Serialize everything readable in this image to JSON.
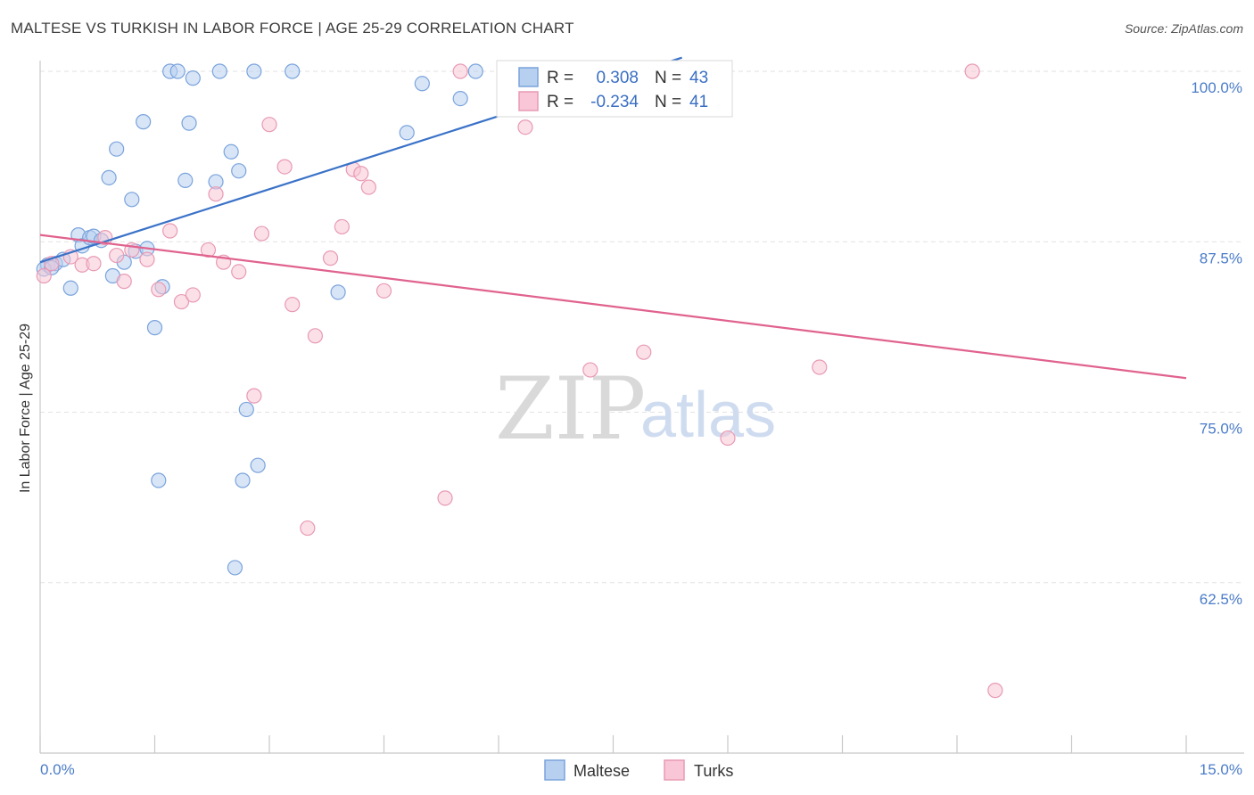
{
  "header": {
    "title": "MALTESE VS TURKISH IN LABOR FORCE | AGE 25-29 CORRELATION CHART",
    "source": "Source: ZipAtlas.com"
  },
  "watermark": {
    "zip": "ZIP",
    "atlas": "atlas"
  },
  "legend": {
    "r_label": "R =",
    "n_label": "N =",
    "rows": [
      {
        "series": "Maltese",
        "r": "0.308",
        "n": "43",
        "fill": "#b8d0f0",
        "stroke": "#7aa3dc"
      },
      {
        "series": "Turks",
        "r": "-0.234",
        "n": "41",
        "fill": "#f8c6d6",
        "stroke": "#e89ab4"
      }
    ]
  },
  "bottom_legend": [
    {
      "label": "Maltese",
      "fill": "#b8d0f0",
      "stroke": "#7aa3dc"
    },
    {
      "label": "Turks",
      "fill": "#f8c6d6",
      "stroke": "#e89ab4"
    }
  ],
  "chart_data": {
    "type": "scatter",
    "title": "MALTESE VS TURKISH IN LABOR FORCE | AGE 25-29 CORRELATION CHART",
    "xlabel": "",
    "ylabel": "In Labor Force | Age 25-29",
    "xlim": [
      0,
      15
    ],
    "ylim": [
      50,
      100
    ],
    "x_tick_labels": [
      "0.0%",
      "15.0%"
    ],
    "y_ticks": [
      62.5,
      75.0,
      87.5,
      100.0
    ],
    "y_tick_labels": [
      "62.5%",
      "75.0%",
      "87.5%",
      "100.0%"
    ],
    "grid": true,
    "legend_position": "top-center",
    "colors": {
      "Maltese": "#3a72c8",
      "Turks": "#e0628e"
    },
    "series": [
      {
        "name": "Maltese",
        "trend": {
          "x": [
            0.0,
            8.4
          ],
          "y": [
            86.0,
            101.0
          ]
        },
        "points": [
          [
            0.1,
            85.8
          ],
          [
            0.2,
            85.9
          ],
          [
            0.3,
            86.2
          ],
          [
            0.4,
            84.1
          ],
          [
            0.5,
            88.0
          ],
          [
            0.55,
            87.2
          ],
          [
            0.65,
            87.8
          ],
          [
            0.7,
            87.9
          ],
          [
            0.8,
            87.6
          ],
          [
            0.9,
            92.2
          ],
          [
            0.95,
            85.0
          ],
          [
            1.0,
            94.3
          ],
          [
            1.1,
            86.0
          ],
          [
            1.2,
            90.6
          ],
          [
            1.25,
            86.8
          ],
          [
            1.35,
            96.3
          ],
          [
            1.5,
            81.2
          ],
          [
            1.6,
            84.2
          ],
          [
            1.55,
            70.0
          ],
          [
            1.7,
            100.0
          ],
          [
            1.8,
            100.0
          ],
          [
            1.9,
            92.0
          ],
          [
            1.95,
            96.2
          ],
          [
            2.0,
            99.5
          ],
          [
            2.3,
            91.9
          ],
          [
            2.35,
            100.0
          ],
          [
            2.5,
            94.1
          ],
          [
            2.55,
            63.6
          ],
          [
            2.6,
            92.7
          ],
          [
            2.65,
            70.0
          ],
          [
            2.8,
            100.0
          ],
          [
            2.7,
            75.2
          ],
          [
            2.85,
            71.1
          ],
          [
            3.3,
            100.0
          ],
          [
            3.9,
            83.8
          ],
          [
            4.8,
            95.5
          ],
          [
            5.0,
            99.1
          ],
          [
            5.5,
            98.0
          ],
          [
            5.7,
            100.0
          ],
          [
            6.1,
            98.1
          ],
          [
            0.05,
            85.5
          ],
          [
            0.15,
            85.6
          ],
          [
            1.4,
            87.0
          ]
        ]
      },
      {
        "name": "Turks",
        "trend": {
          "x": [
            0.0,
            15.0
          ],
          "y": [
            88.0,
            77.5
          ]
        },
        "points": [
          [
            0.05,
            85.0
          ],
          [
            0.15,
            85.9
          ],
          [
            0.4,
            86.4
          ],
          [
            0.55,
            85.8
          ],
          [
            0.7,
            85.9
          ],
          [
            0.85,
            87.8
          ],
          [
            1.0,
            86.5
          ],
          [
            1.1,
            84.6
          ],
          [
            1.2,
            86.9
          ],
          [
            1.4,
            86.2
          ],
          [
            1.55,
            84.0
          ],
          [
            1.7,
            88.3
          ],
          [
            1.85,
            83.1
          ],
          [
            2.0,
            83.6
          ],
          [
            2.2,
            86.9
          ],
          [
            2.3,
            91.0
          ],
          [
            2.4,
            86.0
          ],
          [
            2.6,
            85.3
          ],
          [
            2.8,
            76.2
          ],
          [
            2.9,
            88.1
          ],
          [
            3.0,
            96.1
          ],
          [
            3.2,
            93.0
          ],
          [
            3.3,
            82.9
          ],
          [
            3.5,
            66.5
          ],
          [
            3.6,
            80.6
          ],
          [
            3.8,
            86.3
          ],
          [
            3.95,
            88.6
          ],
          [
            4.1,
            92.8
          ],
          [
            4.2,
            92.5
          ],
          [
            4.3,
            91.5
          ],
          [
            4.5,
            83.9
          ],
          [
            5.3,
            68.7
          ],
          [
            5.5,
            100.0
          ],
          [
            6.1,
            100.0
          ],
          [
            6.35,
            95.9
          ],
          [
            7.2,
            78.1
          ],
          [
            7.9,
            79.4
          ],
          [
            9.0,
            73.1
          ],
          [
            10.2,
            78.3
          ],
          [
            12.2,
            100.0
          ],
          [
            12.5,
            54.6
          ]
        ]
      }
    ]
  }
}
